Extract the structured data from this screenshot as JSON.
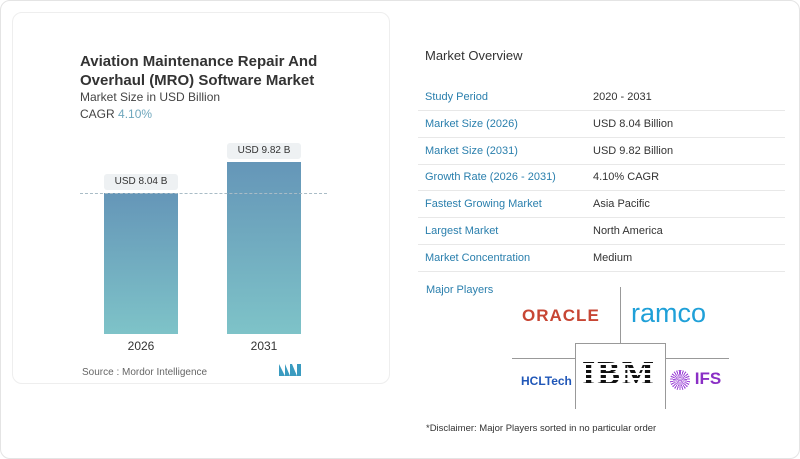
{
  "chart_data": {
    "type": "bar",
    "title": "Aviation Maintenance Repair And Overhaul (MRO) Software Market",
    "subtitle": "Market Size in USD Billion",
    "cagr_label": "CAGR",
    "cagr_value": "4.10%",
    "categories": [
      "2026",
      "2031"
    ],
    "values": [
      8.04,
      9.82
    ],
    "data_labels": [
      "USD 8.04 B",
      "USD 9.82 B"
    ],
    "colors": {
      "bar_top": "#6596b8",
      "bar_bottom": "#7ec3c8"
    },
    "source": "Source :  Mordor Intelligence"
  },
  "overview": {
    "title": "Market Overview",
    "rows": [
      {
        "k": "Study Period",
        "v": "2020 - 2031"
      },
      {
        "k": "Market Size (2026)",
        "v": "USD 8.04 Billion"
      },
      {
        "k": "Market Size (2031)",
        "v": "USD 9.82 Billion"
      },
      {
        "k": "Growth Rate (2026 - 2031)",
        "v": "4.10% CAGR"
      },
      {
        "k": "Fastest Growing Market",
        "v": "Asia Pacific"
      },
      {
        "k": "Largest Market",
        "v": "North America"
      },
      {
        "k": "Market Concentration",
        "v": "Medium"
      }
    ]
  },
  "players": {
    "title": "Major Players",
    "logos": [
      "ORACLE",
      "ramco",
      "HCLTech",
      "IBM",
      "IFS"
    ],
    "disclaimer": "*Disclaimer: Major Players sorted in no particular order"
  }
}
